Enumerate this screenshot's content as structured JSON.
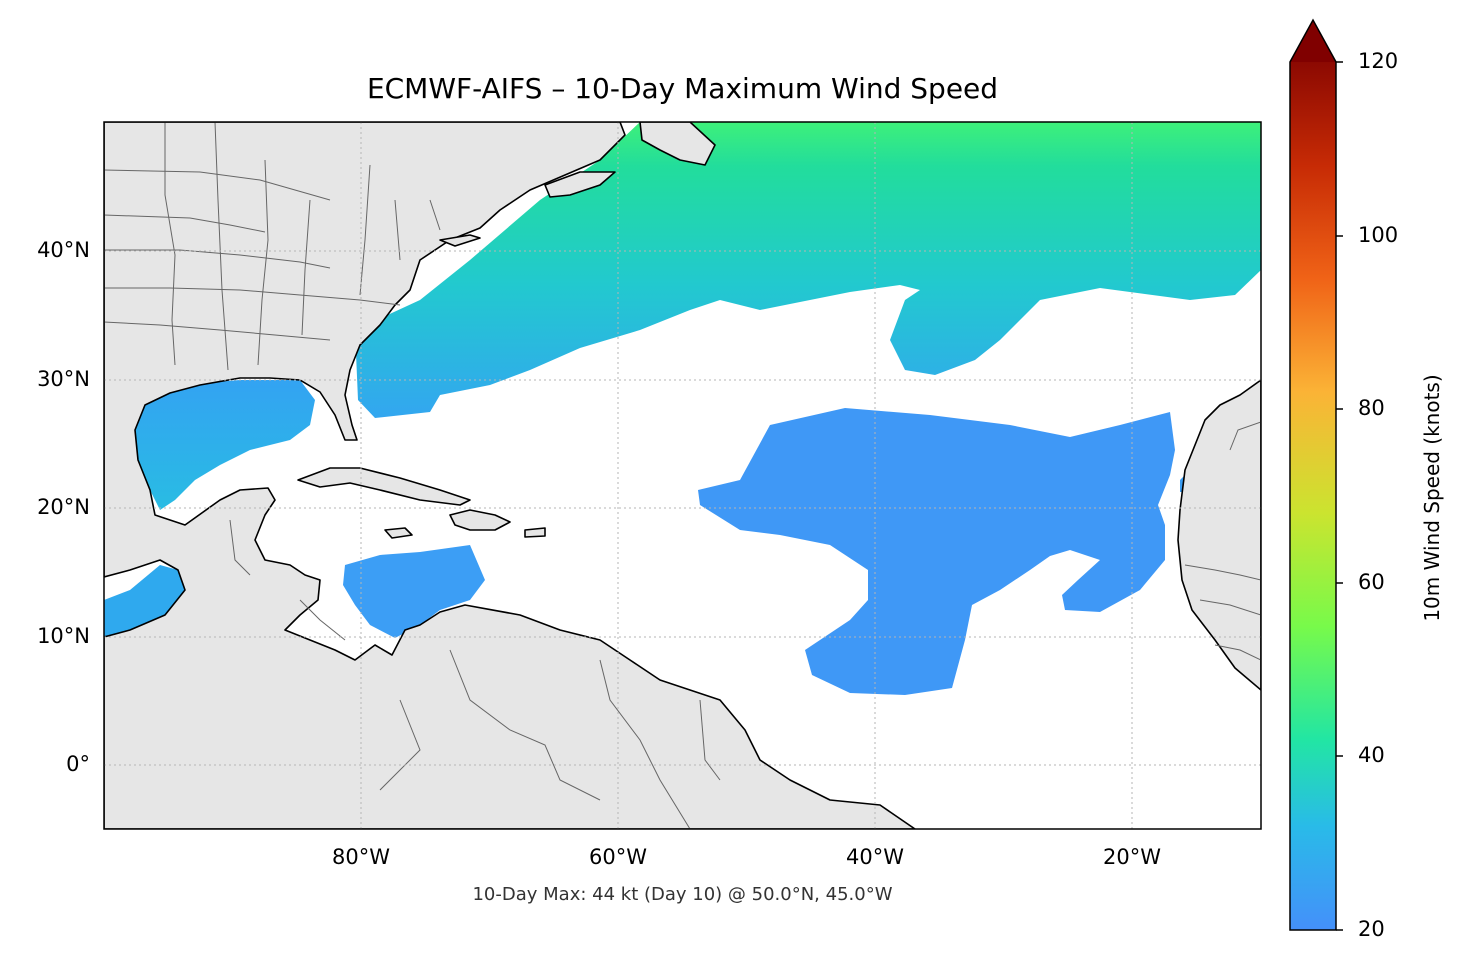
{
  "title": "ECMWF-AIFS – 10-Day Maximum Wind Speed",
  "footer": "10-Day Max: 44 kt (Day 10) @ 50.0°N, 45.0°W",
  "map": {
    "extent": {
      "lon_min": -100,
      "lon_max": -10,
      "lat_min": -5,
      "lat_max": 50
    },
    "lat_labels": [
      "40°N",
      "30°N",
      "20°N",
      "10°N",
      "0°"
    ],
    "lon_labels": [
      "80°W",
      "60°W",
      "40°W",
      "20°W"
    ],
    "colors": {
      "land": "#e6e6e6",
      "ocean": "#ffffff",
      "coast": "#000000",
      "border": "#666666"
    }
  },
  "colorbar": {
    "label": "10m Wind Speed (knots)",
    "ticks": [
      "20",
      "40",
      "60",
      "80",
      "100",
      "120"
    ],
    "range": [
      20,
      120
    ],
    "extend": "max",
    "colors": [
      "#4490fa",
      "#29bbe8",
      "#22e6a3",
      "#78fa4a",
      "#cbe42f",
      "#fbb336",
      "#f06317",
      "#c72b05",
      "#8c0902"
    ]
  },
  "wind_regions": [
    {
      "name": "north-atlantic-band",
      "wind_kt": "24-45"
    },
    {
      "name": "central-atlantic",
      "wind_kt": "20-28"
    },
    {
      "name": "gulf-of-mexico",
      "wind_kt": "22-35"
    },
    {
      "name": "caribbean",
      "wind_kt": "20-26"
    },
    {
      "name": "eastern-pacific",
      "wind_kt": "22-32"
    }
  ]
}
